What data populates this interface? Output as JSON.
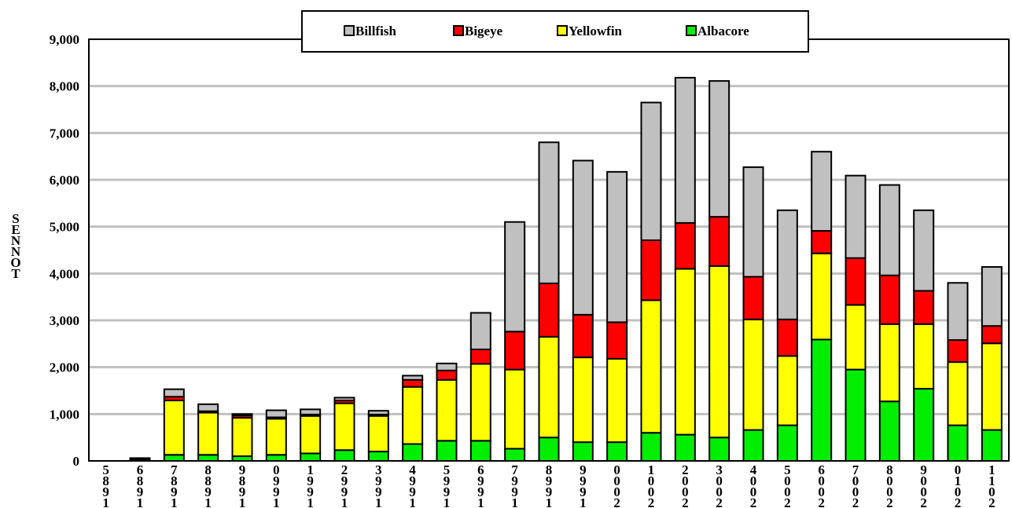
{
  "chart_data": {
    "type": "bar",
    "stacked": true,
    "title": "",
    "ylabel": "TONNES",
    "xlabel": "",
    "ylim": [
      0,
      9000
    ],
    "yticks": [
      "0",
      "1,000",
      "2,000",
      "3,000",
      "4,000",
      "5,000",
      "6,000",
      "7,000",
      "8,000",
      "9,000"
    ],
    "grid": true,
    "legend_position": "top",
    "categories": [
      "1985",
      "1986",
      "1987",
      "1988",
      "1989",
      "1990",
      "1991",
      "1992",
      "1993",
      "1994",
      "1995",
      "1996",
      "1997",
      "1998",
      "1999",
      "2000",
      "2001",
      "2002",
      "2003",
      "2004",
      "2005",
      "2006",
      "2007",
      "2008",
      "2009",
      "2010",
      "2011"
    ],
    "tick_labels": [
      "5\n8\n9\n1",
      "6\n8\n9\n1",
      "7\n8\n9\n1",
      "8\n8\n9\n1",
      "9\n8\n9\n1",
      "0\n9\n9\n1",
      "1\n9\n9\n1",
      "2\n9\n9\n1",
      "3\n9\n9\n1",
      "4\n9\n9\n1",
      "5\n9\n9\n1",
      "6\n9\n9\n1",
      "7\n9\n9\n1",
      "8\n9\n9\n1",
      "9\n9\n9\n1",
      "0\n0\n0\n2",
      "1\n0\n0\n2",
      "2\n0\n0\n2",
      "3\n0\n0\n2",
      "4\n0\n0\n2",
      "5\n0\n0\n2",
      "6\n0\n0\n2",
      "7\n0\n0\n2",
      "8\n0\n0\n2",
      "9\n0\n0\n2",
      "0\n1\n0\n2",
      "1\n1\n0\n2"
    ],
    "series": [
      {
        "name": "Albacore",
        "color": "#00ee00",
        "values": [
          0,
          10,
          130,
          130,
          100,
          130,
          160,
          230,
          200,
          360,
          430,
          430,
          260,
          500,
          400,
          400,
          600,
          560,
          500,
          660,
          760,
          2590,
          1950,
          1270,
          1540,
          760,
          660
        ]
      },
      {
        "name": "Yellowfin",
        "color": "#ffff00",
        "values": [
          0,
          10,
          1160,
          900,
          820,
          770,
          800,
          1000,
          760,
          1220,
          1300,
          1640,
          1690,
          2150,
          1810,
          1780,
          2830,
          3540,
          3660,
          2360,
          1480,
          1840,
          1380,
          1650,
          1380,
          1350,
          1850
        ]
      },
      {
        "name": "Bigeye",
        "color": "#ff0000",
        "values": [
          0,
          30,
          80,
          30,
          50,
          30,
          30,
          60,
          30,
          150,
          200,
          310,
          810,
          1140,
          910,
          780,
          1280,
          980,
          1050,
          910,
          780,
          480,
          1000,
          1040,
          710,
          470,
          370
        ]
      },
      {
        "name": "Billfish",
        "color": "#c0c0c0",
        "values": [
          0,
          10,
          160,
          150,
          30,
          150,
          110,
          60,
          80,
          90,
          150,
          780,
          2340,
          3010,
          3290,
          3210,
          2940,
          3100,
          2900,
          2340,
          2330,
          1690,
          1760,
          1930,
          1720,
          1220,
          1260
        ]
      }
    ]
  }
}
